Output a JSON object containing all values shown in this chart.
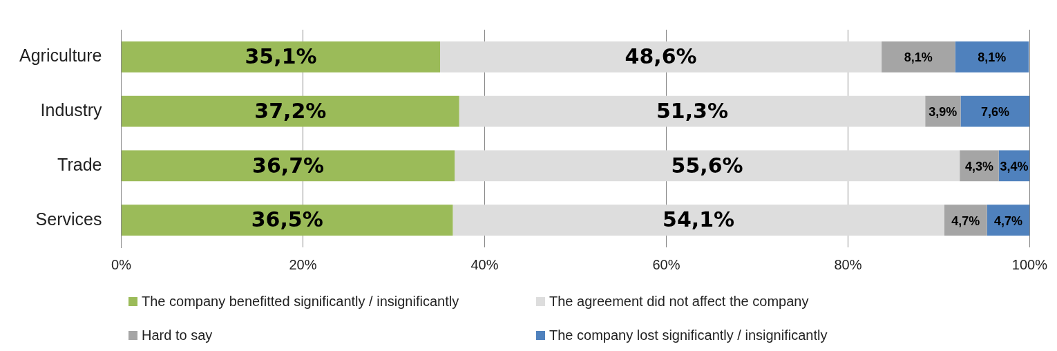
{
  "chart_data": {
    "type": "bar",
    "orientation": "horizontal",
    "stacked": true,
    "categories": [
      "Agriculture",
      "Industry",
      "Trade",
      "Services"
    ],
    "series": [
      {
        "name": "The company benefitted significantly / insignificantly",
        "color": "#9bbb59",
        "values": [
          35.1,
          37.2,
          36.7,
          36.5
        ],
        "value_labels": [
          "35,1%",
          "37,2%",
          "36,7%",
          "36,5%"
        ]
      },
      {
        "name": "The agreement did not affect the company",
        "color": "#dddddd",
        "values": [
          48.6,
          51.3,
          55.6,
          54.1
        ],
        "value_labels": [
          "48,6%",
          "51,3%",
          "55,6%",
          "54,1%"
        ]
      },
      {
        "name": "Hard to say",
        "color": "#a5a5a5",
        "values": [
          8.1,
          3.9,
          4.3,
          4.7
        ],
        "value_labels": [
          "8,1%",
          "3,9%",
          "4,3%",
          "4,7%"
        ]
      },
      {
        "name": "The company lost significantly / insignificantly",
        "color": "#4f81bd",
        "values": [
          8.1,
          7.6,
          3.4,
          4.7
        ],
        "value_labels": [
          "8,1%",
          "7,6%",
          "3,4%",
          "4,7%"
        ]
      }
    ],
    "xlim": [
      0,
      100
    ],
    "xticks": [
      {
        "value": 0,
        "label": "0%"
      },
      {
        "value": 20,
        "label": "20%"
      },
      {
        "value": 40,
        "label": "40%"
      },
      {
        "value": 60,
        "label": "60%"
      },
      {
        "value": 80,
        "label": "80%"
      },
      {
        "value": 100,
        "label": "100%"
      }
    ],
    "grid": "x",
    "legend": "bottom"
  }
}
